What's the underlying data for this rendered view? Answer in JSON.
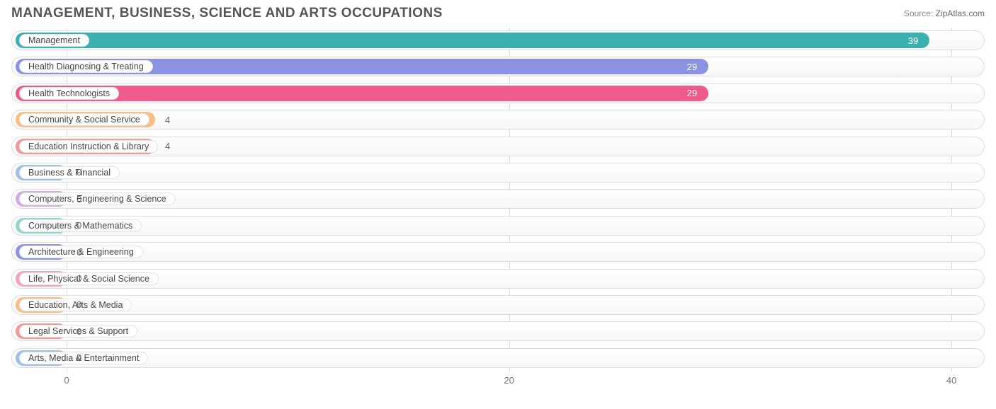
{
  "header": {
    "title": "MANAGEMENT, BUSINESS, SCIENCE AND ARTS OCCUPATIONS",
    "source_label": "Source:",
    "source_site": "ZipAtlas.com"
  },
  "chart": {
    "type": "bar-horizontal",
    "xmin": -2.5,
    "xmax": 41.5,
    "grid_color": "#d9d9d9",
    "track_border": "#dddddd",
    "track_bg_top": "#ffffff",
    "track_bg_bottom": "#f7f7f7",
    "label_pill_bg": "#ffffff",
    "label_pill_border": "#e4e4e4",
    "label_color": "#444444",
    "value_color": "#666666",
    "title_color": "#555555",
    "x_ticks": [
      {
        "value": 0,
        "label": "0"
      },
      {
        "value": 20,
        "label": "20"
      },
      {
        "value": 40,
        "label": "40"
      }
    ],
    "bars": [
      {
        "label": "Management",
        "value": 39,
        "color": "#3cb0b0",
        "value_inside": true
      },
      {
        "label": "Health Diagnosing & Treating",
        "value": 29,
        "color": "#8a92e2",
        "value_inside": true
      },
      {
        "label": "Health Technologists",
        "value": 29,
        "color": "#ed5a8b",
        "value_inside": true
      },
      {
        "label": "Community & Social Service",
        "value": 4,
        "color": "#f6bf83",
        "value_inside": false
      },
      {
        "label": "Education Instruction & Library",
        "value": 4,
        "color": "#f09a9a",
        "value_inside": false
      },
      {
        "label": "Business & Financial",
        "value": 0,
        "color": "#9fc0e6",
        "value_inside": false
      },
      {
        "label": "Computers, Engineering & Science",
        "value": 0,
        "color": "#d2aee0",
        "value_inside": false
      },
      {
        "label": "Computers & Mathematics",
        "value": 0,
        "color": "#8fd7ce",
        "value_inside": false
      },
      {
        "label": "Architecture & Engineering",
        "value": 0,
        "color": "#8a92e2",
        "value_inside": false
      },
      {
        "label": "Life, Physical & Social Science",
        "value": 0,
        "color": "#f4a2c1",
        "value_inside": false
      },
      {
        "label": "Education, Arts & Media",
        "value": 0,
        "color": "#f6bf83",
        "value_inside": false
      },
      {
        "label": "Legal Services & Support",
        "value": 0,
        "color": "#f09a9a",
        "value_inside": false
      },
      {
        "label": "Arts, Media & Entertainment",
        "value": 0,
        "color": "#9fc0e6",
        "value_inside": false
      }
    ]
  }
}
